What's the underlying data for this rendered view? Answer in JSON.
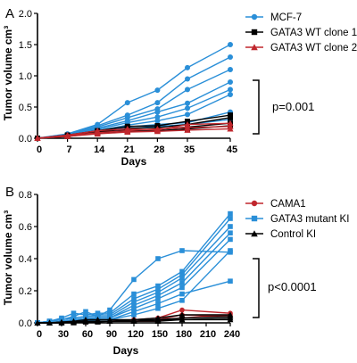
{
  "chart_data": [
    {
      "type": "line",
      "panel_label": "A",
      "title": "",
      "xlabel": "Days",
      "ylabel": "Tumor volume cm³",
      "xlim": [
        0,
        45
      ],
      "ylim": [
        0,
        2.0
      ],
      "xticks": [
        "0",
        "7",
        "14",
        "21",
        "28",
        "35",
        "45"
      ],
      "yticks": [
        "0.0",
        "0.5",
        "1.0",
        "1.5",
        "2.0"
      ],
      "legend_position": "top-right",
      "legend": [
        "MCF-7",
        "GATA3 WT clone 1",
        "GATA3 WT clone 2"
      ],
      "annotation": "p=0.001",
      "x": [
        0,
        7,
        14,
        21,
        28,
        35,
        45
      ],
      "series": [
        {
          "name": "MCF-7",
          "color": "#2a8fd8",
          "marker": "circle",
          "lines": [
            [
              0,
              0.07,
              0.22,
              0.57,
              0.77,
              1.13,
              1.5
            ],
            [
              0,
              0.06,
              0.2,
              0.37,
              0.57,
              0.95,
              1.3
            ],
            [
              0,
              0.05,
              0.18,
              0.33,
              0.47,
              0.78,
              1.1
            ],
            [
              0,
              0.05,
              0.16,
              0.28,
              0.42,
              0.56,
              0.9
            ],
            [
              0,
              0.04,
              0.14,
              0.25,
              0.34,
              0.48,
              0.78
            ],
            [
              0,
              0.04,
              0.12,
              0.21,
              0.28,
              0.38,
              0.7
            ],
            [
              0,
              0.03,
              0.11,
              0.18,
              0.22,
              0.25,
              0.42
            ],
            [
              0,
              0.03,
              0.1,
              0.15,
              0.19,
              0.22,
              0.3
            ]
          ]
        },
        {
          "name": "GATA3 WT clone 1",
          "color": "#000000",
          "marker": "square",
          "lines": [
            [
              0,
              0.05,
              0.12,
              0.19,
              0.2,
              0.27,
              0.37
            ],
            [
              0,
              0.04,
              0.1,
              0.16,
              0.17,
              0.22,
              0.33
            ],
            [
              0,
              0.03,
              0.09,
              0.13,
              0.14,
              0.18,
              0.24
            ],
            [
              0,
              0.03,
              0.08,
              0.11,
              0.12,
              0.15,
              0.2
            ]
          ]
        },
        {
          "name": "GATA3 WT clone 2",
          "color": "#c0272d",
          "marker": "triangle",
          "lines": [
            [
              0,
              0.05,
              0.12,
              0.15,
              0.13,
              0.22,
              0.24
            ],
            [
              0,
              0.04,
              0.09,
              0.12,
              0.15,
              0.17,
              0.19
            ],
            [
              0,
              0.03,
              0.07,
              0.1,
              0.11,
              0.13,
              0.15
            ]
          ]
        }
      ]
    },
    {
      "type": "line",
      "panel_label": "B",
      "title": "",
      "xlabel": "Days",
      "ylabel": "Tumor volume cm³",
      "xlim": [
        0,
        240
      ],
      "ylim": [
        0,
        0.8
      ],
      "xticks": [
        "0",
        "30",
        "60",
        "90",
        "120",
        "150",
        "180",
        "210",
        "240"
      ],
      "yticks": [
        "0.0",
        "0.2",
        "0.4",
        "0.6",
        "0.8"
      ],
      "legend_position": "top-right",
      "legend": [
        "CAMA1",
        "GATA3 mutant KI",
        "Control KI"
      ],
      "annotation": "p<0.0001",
      "x": [
        0,
        15,
        30,
        45,
        60,
        75,
        90,
        120,
        150,
        180,
        240
      ],
      "series": [
        {
          "name": "CAMA1",
          "color": "#c0272d",
          "marker": "circle",
          "lines": [
            [
              0,
              0,
              0.005,
              0.01,
              0.01,
              0.01,
              0.01,
              0.02,
              0.03,
              0.08,
              0.06
            ],
            [
              0,
              0,
              0.005,
              0.005,
              0.01,
              0.01,
              0.01,
              0.01,
              0.02,
              0.05,
              0.04
            ],
            [
              0,
              0,
              0,
              0.005,
              0.005,
              0.01,
              0.01,
              0.01,
              0.01,
              0.03,
              0.05
            ]
          ]
        },
        {
          "name": "GATA3 mutant KI",
          "color": "#2a8fd8",
          "marker": "square",
          "lines": [
            [
              0,
              0.01,
              0.02,
              0.04,
              0.07,
              0.04,
              0.08,
              0.27,
              0.4,
              0.45,
              0.44
            ],
            [
              0,
              0.01,
              0.03,
              0.06,
              0.05,
              0.06,
              0.06,
              0.18,
              0.23,
              0.32,
              0.68
            ],
            [
              0,
              0.01,
              0.02,
              0.03,
              0.04,
              0.05,
              0.05,
              0.15,
              0.21,
              0.3,
              0.65
            ],
            [
              0,
              0.01,
              0.02,
              0.03,
              0.04,
              0.04,
              0.04,
              0.13,
              0.19,
              0.28,
              0.6
            ],
            [
              0,
              0,
              0.01,
              0.02,
              0.03,
              0.03,
              0.03,
              0.11,
              0.17,
              0.25,
              0.56
            ],
            [
              0,
              0,
              0.01,
              0.02,
              0.02,
              0.03,
              0.03,
              0.09,
              0.15,
              0.22,
              0.52
            ],
            [
              0,
              0,
              0.01,
              0.01,
              0.02,
              0.02,
              0.02,
              0.07,
              0.12,
              0.18,
              0.26
            ],
            [
              0,
              0,
              0,
              0.01,
              0.01,
              0.02,
              0.02,
              0.05,
              0.09,
              0.14,
              0.45
            ]
          ]
        },
        {
          "name": "Control KI",
          "color": "#000000",
          "marker": "triangle",
          "lines": [
            [
              0,
              0,
              0.005,
              0.01,
              0.02,
              0.02,
              0.02,
              0.02,
              0.03,
              0.05,
              0.05
            ],
            [
              0,
              0,
              0.005,
              0.005,
              0.01,
              0.01,
              0.01,
              0.02,
              0.02,
              0.03,
              0.04
            ],
            [
              0,
              0,
              0,
              0.005,
              0.01,
              0.01,
              0.01,
              0.01,
              0.02,
              0.02,
              0.03
            ],
            [
              0,
              0,
              0,
              0,
              0.005,
              0.005,
              0.01,
              0.01,
              0.01,
              0.02,
              0.02
            ]
          ]
        }
      ]
    }
  ]
}
